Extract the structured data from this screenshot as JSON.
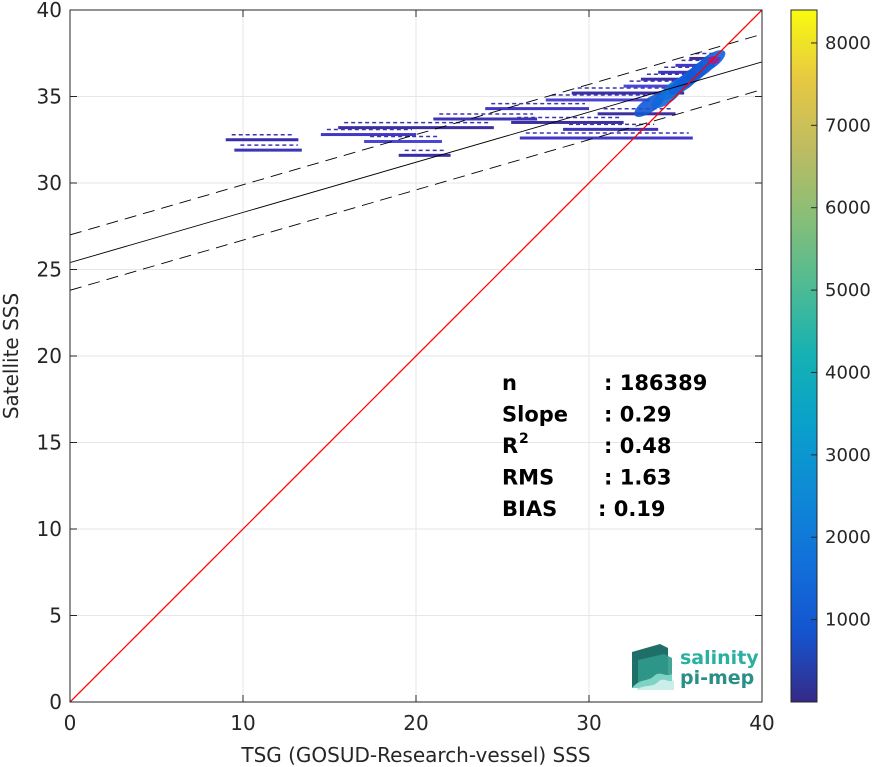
{
  "chart_data": {
    "type": "heatmap",
    "title": "",
    "xlabel": "TSG (GOSUD-Research-vessel) SSS",
    "ylabel": "Satellite SSS",
    "xlim": [
      0,
      40
    ],
    "ylim": [
      0,
      40
    ],
    "xticks": [
      "0",
      "10",
      "20",
      "30",
      "40"
    ],
    "yticks": [
      "0",
      "5",
      "10",
      "15",
      "20",
      "25",
      "30",
      "35",
      "40"
    ],
    "grid": true,
    "colorbar": {
      "range": [
        0,
        8400
      ],
      "ticks": [
        "1000",
        "2000",
        "3000",
        "4000",
        "5000",
        "6000",
        "7000",
        "8000"
      ],
      "colormap": "parula"
    },
    "lines": {
      "identity": {
        "slope": 1,
        "intercept": 0,
        "color": "#ff0000"
      },
      "regression": {
        "slope": 0.29,
        "intercept": 25.4,
        "color": "#000000"
      },
      "upper_bound": {
        "slope": 0.29,
        "intercept": 27.0,
        "style": "dashed"
      },
      "lower_bound": {
        "slope": 0.29,
        "intercept": 23.8,
        "style": "dashed"
      }
    },
    "density_segments": [
      {
        "x0": 9.0,
        "x1": 13.2,
        "y": 32.5
      },
      {
        "x0": 9.5,
        "x1": 13.4,
        "y": 31.9
      },
      {
        "x0": 14.5,
        "x1": 20.0,
        "y": 32.8
      },
      {
        "x0": 15.5,
        "x1": 24.5,
        "y": 33.2
      },
      {
        "x0": 17.0,
        "x1": 21.5,
        "y": 32.4
      },
      {
        "x0": 19.0,
        "x1": 22.0,
        "y": 31.6
      },
      {
        "x0": 21.0,
        "x1": 27.0,
        "y": 33.7
      },
      {
        "x0": 24.0,
        "x1": 30.0,
        "y": 34.3
      },
      {
        "x0": 25.5,
        "x1": 32.0,
        "y": 33.5
      },
      {
        "x0": 27.5,
        "x1": 33.5,
        "y": 34.8
      },
      {
        "x0": 29.0,
        "x1": 35.5,
        "y": 35.2
      },
      {
        "x0": 28.5,
        "x1": 34.0,
        "y": 33.1
      },
      {
        "x0": 26.0,
        "x1": 36.0,
        "y": 32.6
      },
      {
        "x0": 30.5,
        "x1": 35.0,
        "y": 34.0
      },
      {
        "x0": 32.0,
        "x1": 35.8,
        "y": 35.6
      },
      {
        "x0": 33.0,
        "x1": 36.2,
        "y": 36.0
      },
      {
        "x0": 34.0,
        "x1": 36.7,
        "y": 36.4
      },
      {
        "x0": 35.0,
        "x1": 37.2,
        "y": 36.8
      },
      {
        "x0": 35.8,
        "x1": 37.6,
        "y": 37.2
      }
    ],
    "density_core": [
      {
        "x": 33.5,
        "y": 34.5,
        "value": 900
      },
      {
        "x": 34.5,
        "y": 35.0,
        "value": 1400
      },
      {
        "x": 35.0,
        "y": 35.5,
        "value": 1700
      },
      {
        "x": 35.5,
        "y": 35.8,
        "value": 1200
      },
      {
        "x": 36.0,
        "y": 36.2,
        "value": 1000
      },
      {
        "x": 36.5,
        "y": 36.6,
        "value": 900
      },
      {
        "x": 37.0,
        "y": 37.0,
        "value": 1100
      }
    ],
    "stats": [
      {
        "label": "n",
        "value": ": 186389"
      },
      {
        "label": "Slope",
        "value": ": 0.29"
      },
      {
        "label": "R",
        "sup": "2",
        "value": ": 0.48"
      },
      {
        "label": "RMS",
        "value": ": 1.63"
      },
      {
        "label": "BIAS",
        "value": ": 0.19"
      }
    ]
  },
  "logo": {
    "line1": "salinity",
    "line2": "pi-mep"
  }
}
